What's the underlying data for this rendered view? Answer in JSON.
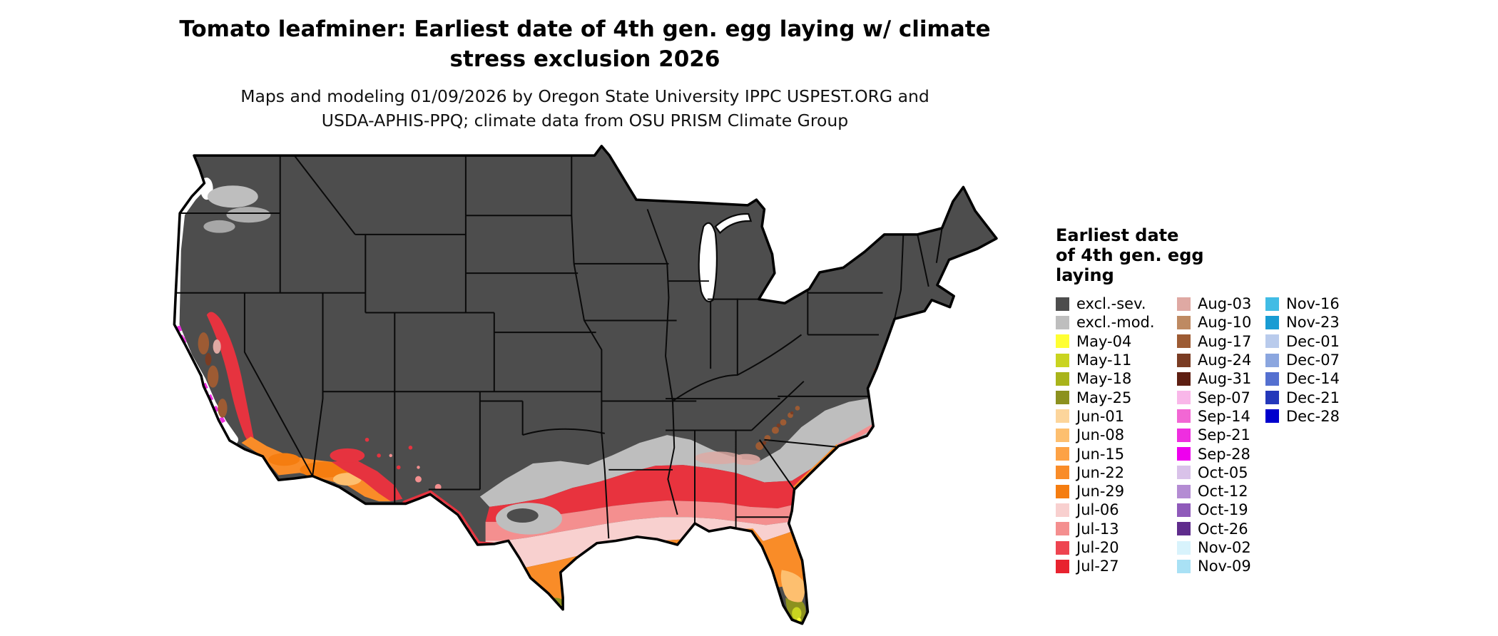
{
  "title": {
    "line1": "Tomato leafminer: Earliest date of 4th gen. egg laying w/ climate",
    "line2": "stress exclusion 2026"
  },
  "subtitle": {
    "line1": "Maps and modeling 01/09/2026 by Oregon State University IPPC USPEST.ORG and",
    "line2": "USDA-APHIS-PPQ; climate data from OSU PRISM Climate Group"
  },
  "legend": {
    "title": "Earliest date\nof 4th gen. egg\nlaying",
    "columns": [
      {
        "items": [
          {
            "label": "excl.-sev.",
            "color": "#4D4D4D"
          },
          {
            "label": "excl.-mod.",
            "color": "#BEBEBE"
          },
          {
            "label": "May-04",
            "color": "#FFFF33"
          },
          {
            "label": "May-11",
            "color": "#C9D420"
          },
          {
            "label": "May-18",
            "color": "#A9B41B"
          },
          {
            "label": "May-25",
            "color": "#8C911F"
          },
          {
            "label": "Jun-01",
            "color": "#FCD59B"
          },
          {
            "label": "Jun-08",
            "color": "#FDBF6F"
          },
          {
            "label": "Jun-15",
            "color": "#FDA245"
          },
          {
            "label": "Jun-22",
            "color": "#F98C28"
          },
          {
            "label": "Jun-29",
            "color": "#F57D10"
          },
          {
            "label": "Jul-06",
            "color": "#F8D0CF"
          },
          {
            "label": "Jul-13",
            "color": "#F48F8F"
          },
          {
            "label": "Jul-20",
            "color": "#EE4450"
          },
          {
            "label": "Jul-27",
            "color": "#E8232F"
          }
        ]
      },
      {
        "items": [
          {
            "label": "Aug-03",
            "color": "#DFA9A3"
          },
          {
            "label": "Aug-10",
            "color": "#BE8A62"
          },
          {
            "label": "Aug-17",
            "color": "#9D5B33"
          },
          {
            "label": "Aug-24",
            "color": "#7A3C23"
          },
          {
            "label": "Aug-31",
            "color": "#5E1F12"
          },
          {
            "label": "Sep-07",
            "color": "#F9B7E9"
          },
          {
            "label": "Sep-14",
            "color": "#F267D4"
          },
          {
            "label": "Sep-21",
            "color": "#EF2EE0"
          },
          {
            "label": "Sep-28",
            "color": "#EE00EE"
          },
          {
            "label": "Oct-05",
            "color": "#D9C2E9"
          },
          {
            "label": "Oct-12",
            "color": "#B48CD3"
          },
          {
            "label": "Oct-19",
            "color": "#8F5ABA"
          },
          {
            "label": "Oct-26",
            "color": "#5F2C8C"
          },
          {
            "label": "Nov-02",
            "color": "#D8F3FC"
          },
          {
            "label": "Nov-09",
            "color": "#A9E1F5"
          }
        ]
      },
      {
        "items": [
          {
            "label": "Nov-16",
            "color": "#41BCE5"
          },
          {
            "label": "Nov-23",
            "color": "#199CD3"
          },
          {
            "label": "Dec-01",
            "color": "#B9CBEC"
          },
          {
            "label": "Dec-07",
            "color": "#8BA6DF"
          },
          {
            "label": "Dec-14",
            "color": "#5470D0"
          },
          {
            "label": "Dec-21",
            "color": "#2438BA"
          },
          {
            "label": "Dec-28",
            "color": "#0000CD"
          }
        ]
      }
    ]
  }
}
